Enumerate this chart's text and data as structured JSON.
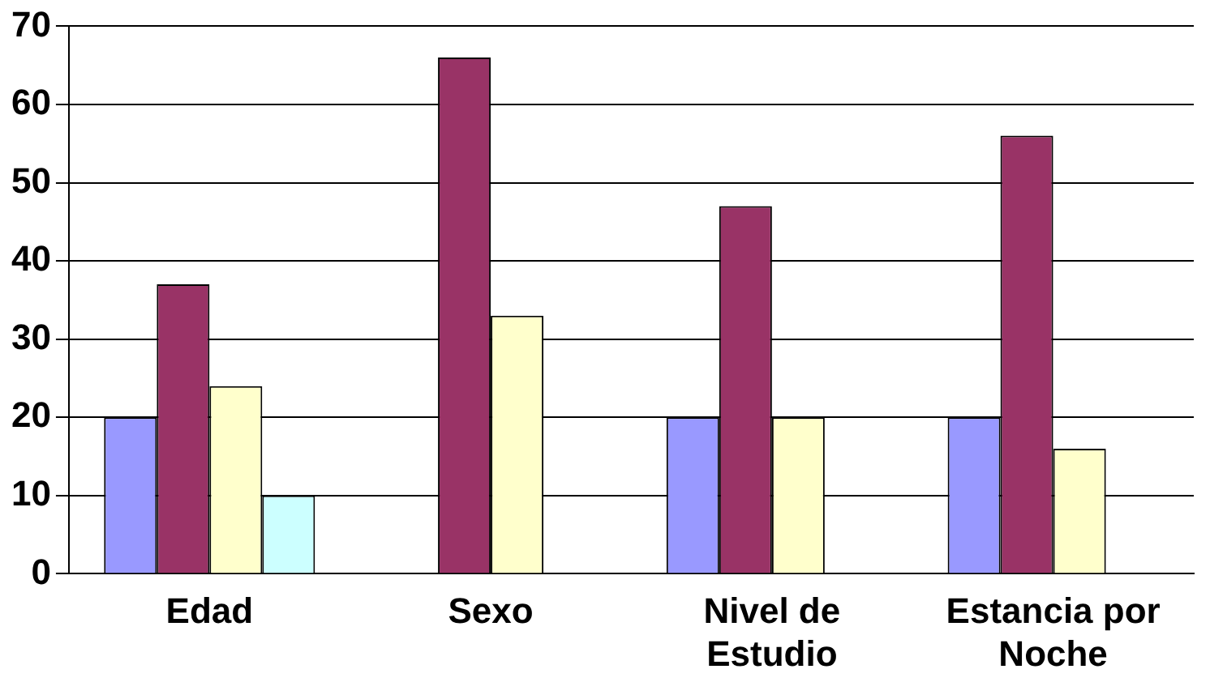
{
  "chart_data": {
    "type": "bar",
    "categories": [
      "Edad",
      "Sexo",
      "Nivel de Estudio",
      "Estancia por Noche"
    ],
    "series": [
      {
        "color": "#9999ff",
        "values": [
          20,
          null,
          20,
          20
        ]
      },
      {
        "color": "#993366",
        "values": [
          37,
          66,
          47,
          56
        ]
      },
      {
        "color": "#ffffcc",
        "values": [
          24,
          33,
          20,
          16
        ]
      },
      {
        "color": "#ccffff",
        "values": [
          10,
          null,
          null,
          null
        ]
      }
    ],
    "ylim": [
      0,
      70
    ],
    "yticks": [
      0,
      10,
      20,
      30,
      40,
      50,
      60,
      70
    ],
    "grid": "y",
    "legend": false
  }
}
